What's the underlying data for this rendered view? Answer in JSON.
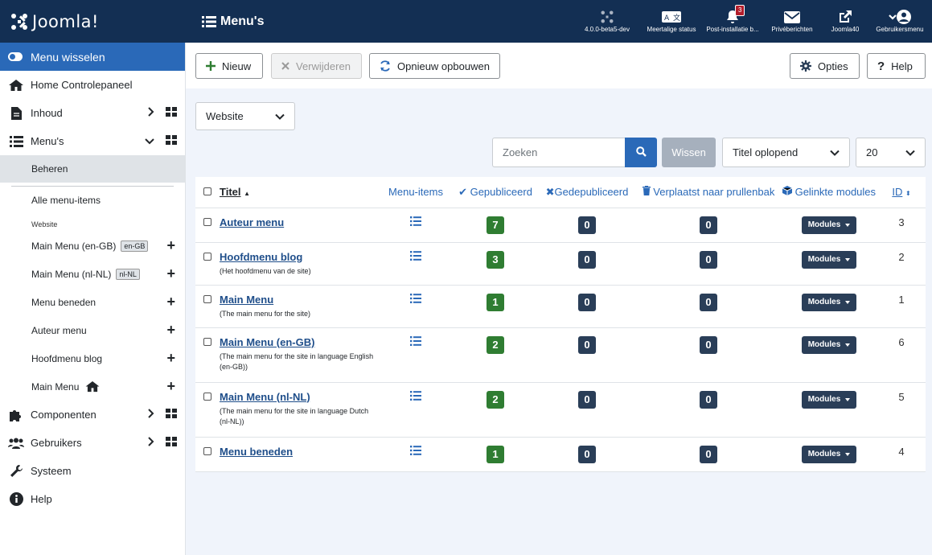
{
  "topbar": {
    "brand": "Joomla!",
    "page_title": "Menu's",
    "items": [
      {
        "label": "4.0.0-beta5-dev",
        "icon": "joomla-icon"
      },
      {
        "label": "Meertalige status",
        "icon": "language-icon"
      },
      {
        "label": "Post-installatie b...",
        "icon": "bell-icon",
        "badge": "3"
      },
      {
        "label": "Privéberichten",
        "icon": "envelope-icon"
      },
      {
        "label": "Joomla40",
        "icon": "external-link-icon"
      },
      {
        "label": "Gebruikersmenu",
        "icon": "user-icon"
      }
    ]
  },
  "sidebar": {
    "toggle_label": "Menu wisselen",
    "items": [
      {
        "label": "Home Controlepaneel"
      },
      {
        "label": "Inhoud"
      },
      {
        "label": "Menu's"
      },
      {
        "label": "Beheren"
      },
      {
        "label": "Alle menu-items"
      },
      {
        "label": "Website"
      },
      {
        "label": "Main Menu (en-GB)",
        "badge": "en-GB"
      },
      {
        "label": "Main Menu (nl-NL)",
        "badge": "nl-NL"
      },
      {
        "label": "Menu beneden"
      },
      {
        "label": "Auteur menu"
      },
      {
        "label": "Hoofdmenu blog"
      },
      {
        "label": "Main Menu"
      },
      {
        "label": "Componenten"
      },
      {
        "label": "Gebruikers"
      },
      {
        "label": "Systeem"
      },
      {
        "label": "Help"
      }
    ]
  },
  "toolbar": {
    "new_label": "Nieuw",
    "delete_label": "Verwijderen",
    "rebuild_label": "Opnieuw opbouwen",
    "options_label": "Opties",
    "help_label": "Help"
  },
  "filters": {
    "client_value": "Website",
    "search_placeholder": "Zoeken",
    "clear_label": "Wissen",
    "sort_value": "Titel oplopend",
    "limit_value": "20"
  },
  "table": {
    "headers": {
      "title": "Titel",
      "menu_items": "Menu-items",
      "published": "Gepubliceerd",
      "unpublished": "Gedepubliceerd",
      "trashed": "Verplaatst naar prullenbak",
      "modules": "Gelinkte modules",
      "id": "ID"
    },
    "modules_label": "Modules",
    "rows": [
      {
        "title": "Auteur menu",
        "desc": "",
        "published": "7",
        "unpublished": "0",
        "trashed": "0",
        "id": "3"
      },
      {
        "title": "Hoofdmenu blog",
        "desc": "(Het hoofdmenu van de site)",
        "published": "3",
        "unpublished": "0",
        "trashed": "0",
        "id": "2"
      },
      {
        "title": "Main Menu",
        "desc": "(The main menu for the site)",
        "published": "1",
        "unpublished": "0",
        "trashed": "0",
        "id": "1"
      },
      {
        "title": "Main Menu (en-GB)",
        "desc": "(The main menu for the site in language English (en-GB))",
        "published": "2",
        "unpublished": "0",
        "trashed": "0",
        "id": "6"
      },
      {
        "title": "Main Menu (nl-NL)",
        "desc": "(The main menu for the site in language Dutch (nl-NL))",
        "published": "2",
        "unpublished": "0",
        "trashed": "0",
        "id": "5"
      },
      {
        "title": "Menu beneden",
        "desc": "",
        "published": "1",
        "unpublished": "0",
        "trashed": "0",
        "id": "4"
      }
    ]
  }
}
